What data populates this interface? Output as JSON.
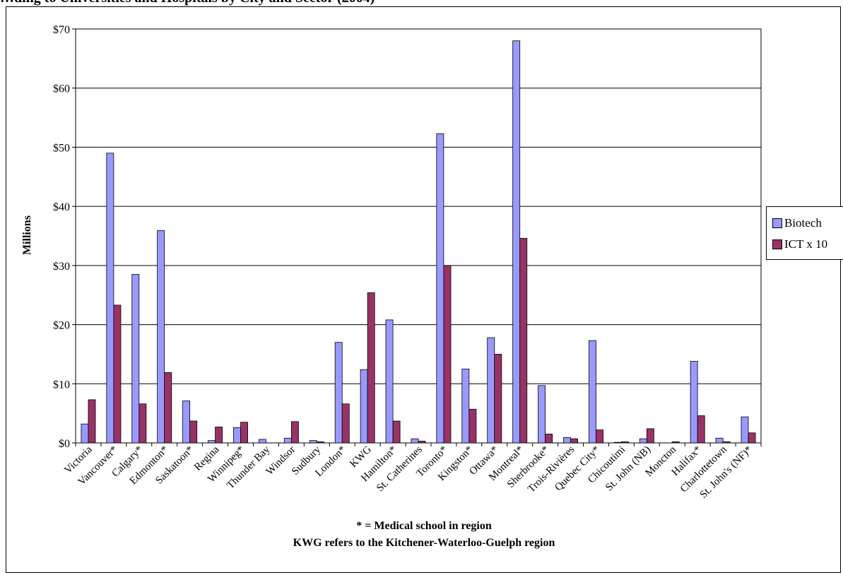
{
  "chart_data": {
    "type": "bar",
    "title": "…ding to Universities and Hospitals by City and Sector (2004)",
    "ylabel": "Millions",
    "xlabel": "",
    "ylim": [
      0,
      70
    ],
    "yticks": [
      0,
      10,
      20,
      30,
      40,
      50,
      60,
      70
    ],
    "ytick_labels": [
      "$0",
      "$10",
      "$20",
      "$30",
      "$40",
      "$50",
      "$60",
      "$70"
    ],
    "grid": true,
    "legend_position": "right",
    "categories": [
      "Victoria",
      "Vancouver*",
      "Calgary*",
      "Edmonton*",
      "Saskatoon*",
      "Regina",
      "Winnipeg*",
      "Thunder Bay",
      "Windsor",
      "Sudbury",
      "London*",
      "KWG",
      "Hamilton*",
      "St. Catherines",
      "Toronto*",
      "Kingston*",
      "Ottawa*",
      "Montreal*",
      "Sherbrooke*",
      "Trois-Rivières",
      "Quebec City*",
      "Chicoutimi",
      "St. John (NB)",
      "Moncton",
      "Halifax*",
      "Charlottetown",
      "St. John's (NF)*"
    ],
    "series": [
      {
        "name": "Biotech",
        "color": "#9999ff",
        "values": [
          3.2,
          49.0,
          28.5,
          35.9,
          7.1,
          0.4,
          2.6,
          0.6,
          0.8,
          0.4,
          17.0,
          12.4,
          20.8,
          0.7,
          52.3,
          12.5,
          17.8,
          68.0,
          9.7,
          0.9,
          17.3,
          0.1,
          0.7,
          0.0,
          13.8,
          0.8,
          4.4
        ]
      },
      {
        "name": "ICT x 10",
        "color": "#993366",
        "values": [
          7.3,
          23.3,
          6.6,
          11.9,
          3.7,
          2.7,
          3.5,
          0.0,
          3.6,
          0.2,
          6.6,
          25.4,
          3.7,
          0.3,
          30.0,
          5.7,
          15.0,
          34.6,
          1.5,
          0.7,
          2.2,
          0.2,
          2.4,
          0.2,
          4.6,
          0.2,
          1.7
        ]
      }
    ],
    "footnotes": [
      "* = Medical school in region",
      "KWG refers to the Kitchener-Waterloo-Guelph region"
    ]
  }
}
